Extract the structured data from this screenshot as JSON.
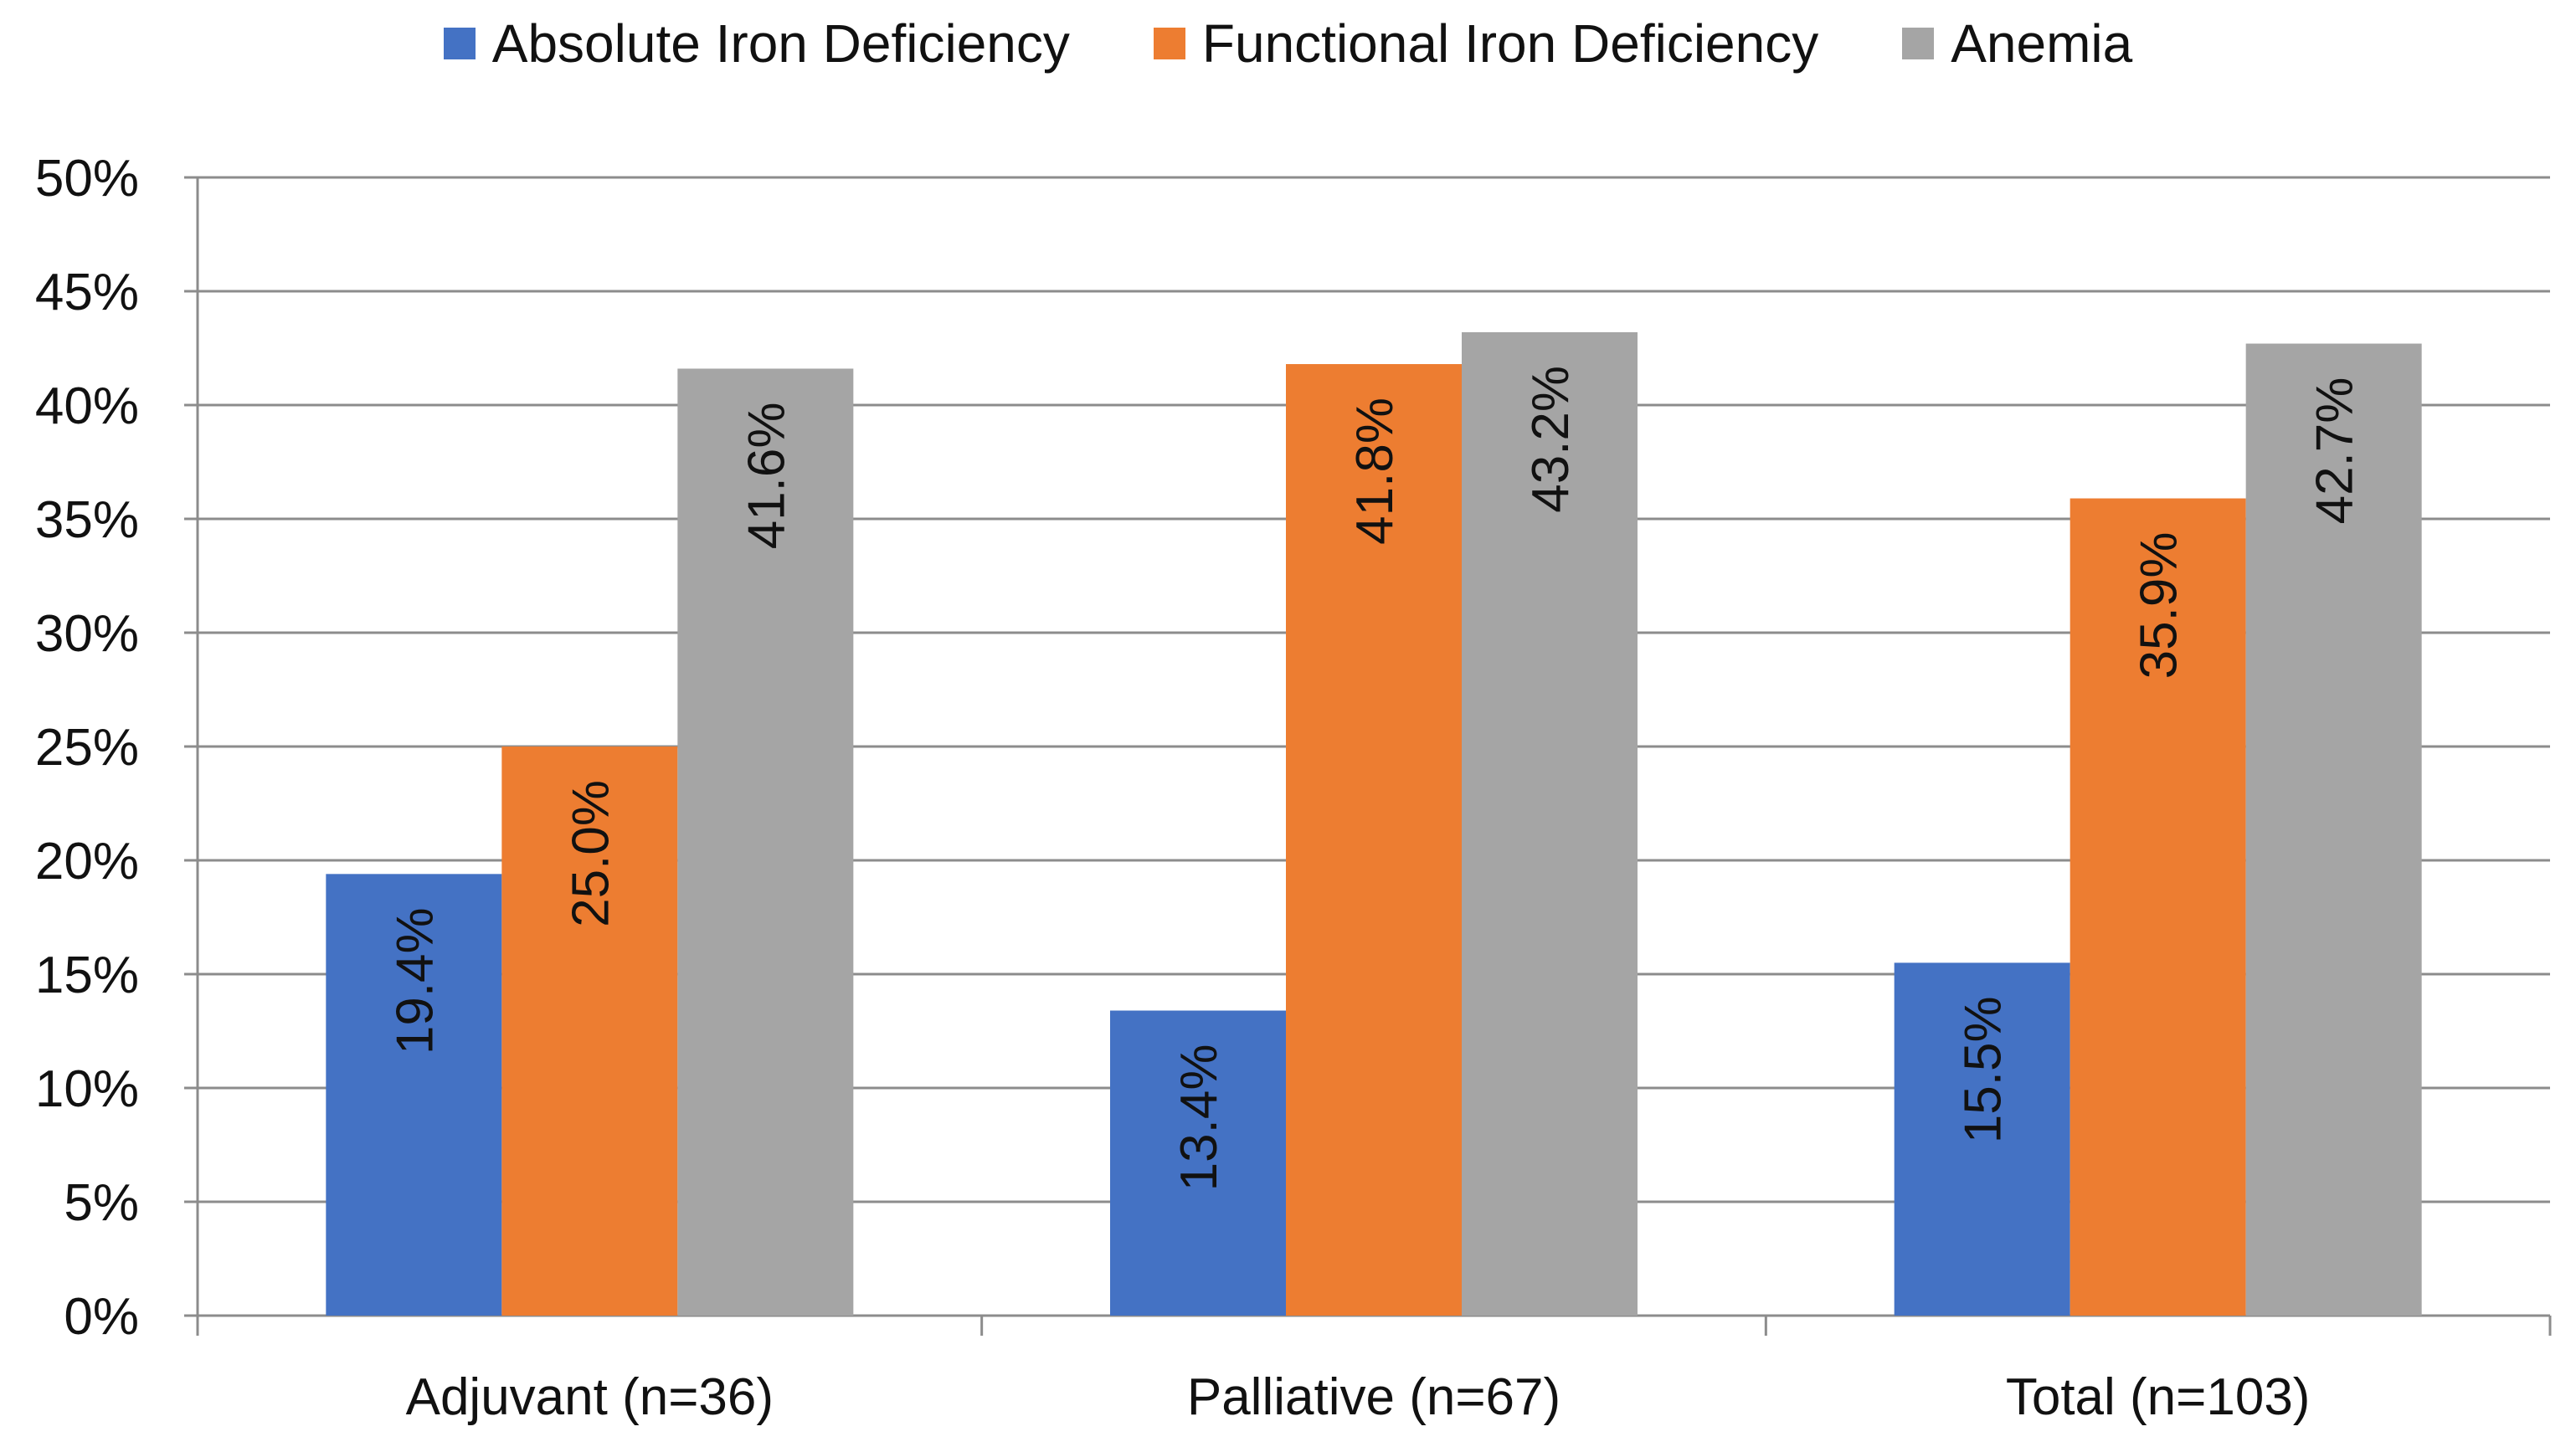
{
  "chart_data": {
    "type": "bar",
    "title": "",
    "xlabel": "",
    "ylabel": "",
    "ylim": [
      0,
      50
    ],
    "yticks": [
      0,
      5,
      10,
      15,
      20,
      25,
      30,
      35,
      40,
      45,
      50
    ],
    "ytick_labels": [
      "0%",
      "5%",
      "10%",
      "15%",
      "20%",
      "25%",
      "30%",
      "35%",
      "40%",
      "45%",
      "50%"
    ],
    "grid": true,
    "legend_position": "top",
    "categories": [
      "Adjuvant (n=36)",
      "Palliative (n=67)",
      "Total (n=103)"
    ],
    "series": [
      {
        "name": "Absolute Iron Deficiency",
        "color": "#4472C4",
        "values": [
          19.4,
          13.4,
          15.5
        ],
        "labels": [
          "19.4%",
          "13.4%",
          "15.5%"
        ]
      },
      {
        "name": "Functional Iron Deficiency",
        "color": "#ED7D31",
        "values": [
          25.0,
          41.8,
          35.9
        ],
        "labels": [
          "25.0%",
          "41.8%",
          "35.9%"
        ]
      },
      {
        "name": "Anemia",
        "color": "#A5A5A5",
        "values": [
          41.6,
          43.2,
          42.7
        ],
        "labels": [
          "41.6%",
          "43.2%",
          "42.7%"
        ]
      }
    ]
  }
}
